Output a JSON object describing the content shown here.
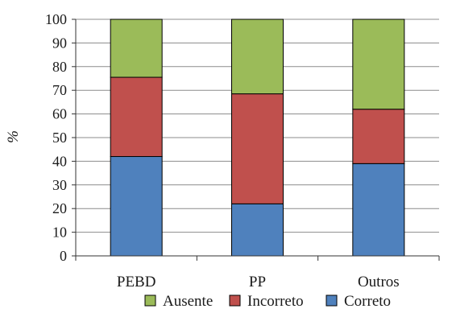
{
  "chart_data": {
    "type": "bar",
    "stacked": true,
    "categories": [
      "PEBD",
      "PP",
      "Outros"
    ],
    "series": [
      {
        "name": "Correto",
        "values": [
          42,
          22,
          39
        ],
        "color": "#4f81bd"
      },
      {
        "name": "Incorreto",
        "values": [
          33.5,
          46.5,
          23
        ],
        "color": "#c0504d"
      },
      {
        "name": "Ausente",
        "values": [
          24.5,
          31.5,
          38
        ],
        "color": "#9bbb59"
      }
    ],
    "title": "",
    "xlabel": "",
    "ylabel": "%",
    "ylim": [
      0,
      100
    ],
    "yticks": [
      0,
      10,
      20,
      30,
      40,
      50,
      60,
      70,
      80,
      90,
      100
    ],
    "grid": "horizontal",
    "legend": {
      "position": "bottom",
      "order": [
        "Ausente",
        "Incorreto",
        "Correto"
      ]
    }
  }
}
